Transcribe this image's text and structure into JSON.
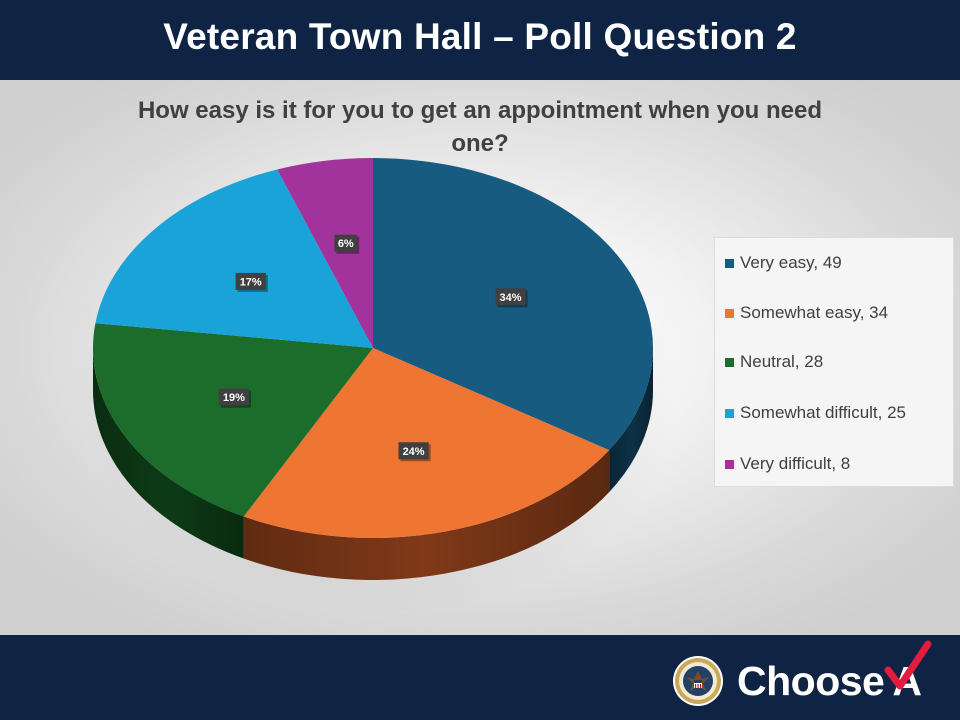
{
  "slide": {
    "title": "Veteran Town Hall – Poll Question 2"
  },
  "chart_data": {
    "type": "pie",
    "title": "How easy is it for you to get an appointment when you need one?",
    "categories": [
      "Very easy",
      "Somewhat easy",
      "Neutral",
      "Somewhat difficult",
      "Very difficult"
    ],
    "values": [
      49,
      34,
      28,
      25,
      8
    ],
    "percent_labels": [
      "34%",
      "24%",
      "19%",
      "17%",
      "6%"
    ],
    "legend_labels": [
      "Very easy, 49",
      "Somewhat easy, 34",
      "Neutral, 28",
      "Somewhat difficult, 25",
      "Very difficult, 8"
    ],
    "colors": [
      "#175c80",
      "#ee7532",
      "#1c6d2c",
      "#1aa3d8",
      "#a3339c"
    ],
    "side_colors": [
      "#0c3146",
      "#803918",
      "#0d3b16",
      "#0e5a78",
      "#5a1a55"
    ],
    "legend_position": "right",
    "style": "3d"
  },
  "footer": {
    "brand_prefix": "Choose",
    "brand_suffix": "A",
    "seal_icon": "va-seal-icon"
  }
}
